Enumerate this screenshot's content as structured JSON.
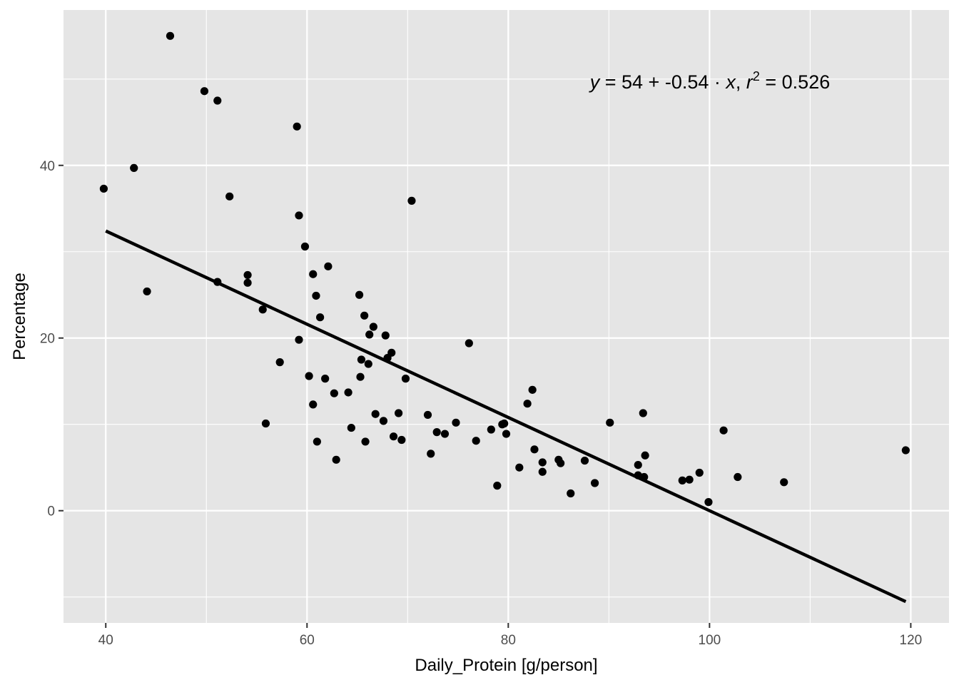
{
  "chart_data": {
    "type": "scatter",
    "title": "",
    "xlabel": "Daily_Protein [g/person]",
    "ylabel": "Percentage",
    "xlim": [
      35.8,
      123.8
    ],
    "ylim": [
      -13.0,
      58.0
    ],
    "x_ticks": [
      40,
      60,
      80,
      100,
      120
    ],
    "x_tick_labels": [
      "40",
      "60",
      "80",
      "100",
      "120"
    ],
    "y_ticks": [
      0,
      20,
      40
    ],
    "y_tick_labels": [
      "0",
      "20",
      "40"
    ],
    "grid": true,
    "panel_background": "#e5e5e5",
    "grid_color": "#ffffff",
    "point_color": "#000000",
    "line_color": "#000000",
    "legend": "none",
    "regression": {
      "intercept": 54.0,
      "slope": -0.54,
      "x_range": [
        40.0,
        119.5
      ],
      "annotation_parts": {
        "y": "y",
        "eq1": " = 54 + -0.54 · ",
        "x": "x",
        "sep": ",  ",
        "r": "r",
        "sup": "2",
        "eq2": " = 0.526"
      }
    },
    "points": [
      {
        "x": 39.8,
        "y": 37.3
      },
      {
        "x": 42.8,
        "y": 39.7
      },
      {
        "x": 44.1,
        "y": 25.4
      },
      {
        "x": 46.4,
        "y": 55.0
      },
      {
        "x": 49.8,
        "y": 48.6
      },
      {
        "x": 51.1,
        "y": 47.5
      },
      {
        "x": 51.1,
        "y": 26.5
      },
      {
        "x": 52.3,
        "y": 36.4
      },
      {
        "x": 54.1,
        "y": 27.3
      },
      {
        "x": 54.1,
        "y": 26.4
      },
      {
        "x": 55.6,
        "y": 23.3
      },
      {
        "x": 55.9,
        "y": 10.1
      },
      {
        "x": 57.3,
        "y": 17.2
      },
      {
        "x": 59.0,
        "y": 44.5
      },
      {
        "x": 59.2,
        "y": 34.2
      },
      {
        "x": 59.2,
        "y": 19.8
      },
      {
        "x": 59.8,
        "y": 30.6
      },
      {
        "x": 60.2,
        "y": 15.6
      },
      {
        "x": 60.6,
        "y": 27.4
      },
      {
        "x": 60.6,
        "y": 12.3
      },
      {
        "x": 60.9,
        "y": 24.9
      },
      {
        "x": 61.0,
        "y": 8.0
      },
      {
        "x": 61.3,
        "y": 22.4
      },
      {
        "x": 61.8,
        "y": 15.3
      },
      {
        "x": 62.1,
        "y": 28.3
      },
      {
        "x": 62.7,
        "y": 13.6
      },
      {
        "x": 62.9,
        "y": 5.9
      },
      {
        "x": 64.1,
        "y": 13.7
      },
      {
        "x": 64.4,
        "y": 9.6
      },
      {
        "x": 65.2,
        "y": 25.0
      },
      {
        "x": 65.3,
        "y": 15.5
      },
      {
        "x": 65.4,
        "y": 17.5
      },
      {
        "x": 65.7,
        "y": 22.6
      },
      {
        "x": 65.8,
        "y": 8.0
      },
      {
        "x": 66.1,
        "y": 17.0
      },
      {
        "x": 66.2,
        "y": 20.4
      },
      {
        "x": 66.6,
        "y": 21.3
      },
      {
        "x": 66.8,
        "y": 11.2
      },
      {
        "x": 67.6,
        "y": 10.4
      },
      {
        "x": 67.8,
        "y": 20.3
      },
      {
        "x": 68.0,
        "y": 17.7
      },
      {
        "x": 68.4,
        "y": 18.3
      },
      {
        "x": 68.6,
        "y": 8.6
      },
      {
        "x": 69.1,
        "y": 11.3
      },
      {
        "x": 69.4,
        "y": 8.2
      },
      {
        "x": 69.8,
        "y": 15.3
      },
      {
        "x": 70.4,
        "y": 35.9
      },
      {
        "x": 72.0,
        "y": 11.1
      },
      {
        "x": 72.3,
        "y": 6.6
      },
      {
        "x": 72.9,
        "y": 9.1
      },
      {
        "x": 73.7,
        "y": 8.9
      },
      {
        "x": 74.8,
        "y": 10.2
      },
      {
        "x": 76.1,
        "y": 19.4
      },
      {
        "x": 76.8,
        "y": 8.1
      },
      {
        "x": 78.3,
        "y": 9.4
      },
      {
        "x": 78.9,
        "y": 2.9
      },
      {
        "x": 79.4,
        "y": 10.0
      },
      {
        "x": 79.6,
        "y": 10.1
      },
      {
        "x": 79.8,
        "y": 8.9
      },
      {
        "x": 81.1,
        "y": 5.0
      },
      {
        "x": 81.9,
        "y": 12.4
      },
      {
        "x": 82.4,
        "y": 14.0
      },
      {
        "x": 82.6,
        "y": 7.1
      },
      {
        "x": 83.4,
        "y": 5.6
      },
      {
        "x": 83.4,
        "y": 4.5
      },
      {
        "x": 85.0,
        "y": 5.9
      },
      {
        "x": 85.2,
        "y": 5.5
      },
      {
        "x": 86.2,
        "y": 2.0
      },
      {
        "x": 87.6,
        "y": 5.8
      },
      {
        "x": 88.6,
        "y": 3.2
      },
      {
        "x": 90.1,
        "y": 10.2
      },
      {
        "x": 92.9,
        "y": 5.3
      },
      {
        "x": 92.9,
        "y": 4.1
      },
      {
        "x": 93.4,
        "y": 11.3
      },
      {
        "x": 93.5,
        "y": 3.9
      },
      {
        "x": 93.6,
        "y": 6.4
      },
      {
        "x": 97.3,
        "y": 3.5
      },
      {
        "x": 98.0,
        "y": 3.6
      },
      {
        "x": 99.0,
        "y": 4.4
      },
      {
        "x": 99.9,
        "y": 1.0
      },
      {
        "x": 101.4,
        "y": 9.3
      },
      {
        "x": 102.8,
        "y": 3.9
      },
      {
        "x": 107.4,
        "y": 3.3
      },
      {
        "x": 119.5,
        "y": 7.0
      }
    ]
  }
}
